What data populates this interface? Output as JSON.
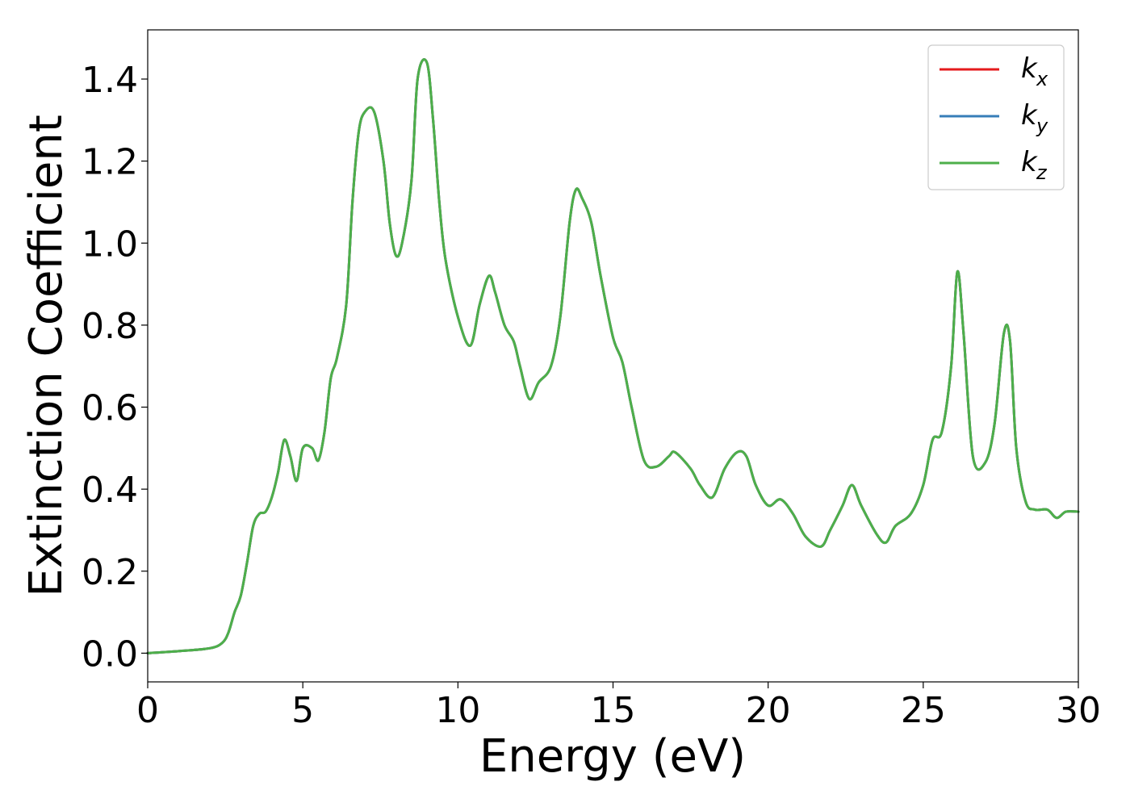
{
  "chart_data": {
    "type": "line",
    "title": "",
    "xlabel": "Energy (eV)",
    "ylabel": "Extinction Coefficient",
    "xlim": [
      0,
      30
    ],
    "ylim": [
      -0.07,
      1.52
    ],
    "xticks": [
      0,
      5,
      10,
      15,
      20,
      25,
      30
    ],
    "xtick_labels": [
      "0",
      "5",
      "10",
      "15",
      "20",
      "25",
      "30"
    ],
    "yticks": [
      0.0,
      0.2,
      0.4,
      0.6,
      0.8,
      1.0,
      1.2,
      1.4
    ],
    "ytick_labels": [
      "0.0",
      "0.2",
      "0.4",
      "0.6",
      "0.8",
      "1.0",
      "1.2",
      "1.4"
    ],
    "grid": false,
    "legend_position": "top-right",
    "x": [
      0,
      1,
      2,
      2.4,
      2.6,
      2.8,
      3.0,
      3.2,
      3.4,
      3.6,
      3.8,
      4.0,
      4.2,
      4.4,
      4.6,
      4.8,
      5.0,
      5.3,
      5.5,
      5.7,
      5.9,
      6.1,
      6.4,
      6.6,
      6.8,
      7.0,
      7.3,
      7.6,
      7.8,
      8.0,
      8.2,
      8.5,
      8.7,
      9.0,
      9.2,
      9.4,
      9.6,
      10.0,
      10.4,
      10.7,
      11.0,
      11.2,
      11.5,
      11.8,
      12.0,
      12.3,
      12.6,
      13.0,
      13.3,
      13.6,
      13.8,
      14.0,
      14.3,
      14.6,
      15.0,
      15.3,
      15.6,
      16.0,
      16.4,
      16.8,
      17.0,
      17.5,
      17.8,
      18.2,
      18.6,
      19.0,
      19.3,
      19.6,
      20.0,
      20.4,
      20.8,
      21.2,
      21.7,
      22.0,
      22.4,
      22.7,
      23.0,
      23.5,
      23.8,
      24.1,
      24.6,
      25.0,
      25.3,
      25.6,
      25.9,
      26.1,
      26.3,
      26.6,
      27.0,
      27.3,
      27.6,
      27.8,
      28.0,
      28.3,
      28.6,
      29.0,
      29.3,
      29.6,
      30.0
    ],
    "series": [
      {
        "name": "k_x",
        "legend_base": "k",
        "legend_sub": "x",
        "color": "#e41a1c",
        "values": [
          0.0,
          0.005,
          0.012,
          0.025,
          0.05,
          0.1,
          0.14,
          0.22,
          0.31,
          0.34,
          0.345,
          0.38,
          0.44,
          0.52,
          0.48,
          0.42,
          0.5,
          0.5,
          0.47,
          0.54,
          0.67,
          0.72,
          0.85,
          1.1,
          1.27,
          1.32,
          1.32,
          1.2,
          1.05,
          0.97,
          1.0,
          1.15,
          1.4,
          1.44,
          1.3,
          1.1,
          0.96,
          0.82,
          0.75,
          0.85,
          0.92,
          0.88,
          0.8,
          0.76,
          0.7,
          0.62,
          0.66,
          0.7,
          0.82,
          1.05,
          1.13,
          1.11,
          1.05,
          0.92,
          0.77,
          0.71,
          0.6,
          0.47,
          0.455,
          0.48,
          0.49,
          0.45,
          0.41,
          0.38,
          0.45,
          0.49,
          0.48,
          0.41,
          0.36,
          0.375,
          0.34,
          0.285,
          0.26,
          0.3,
          0.36,
          0.41,
          0.36,
          0.29,
          0.27,
          0.31,
          0.34,
          0.41,
          0.52,
          0.54,
          0.7,
          0.93,
          0.78,
          0.48,
          0.465,
          0.56,
          0.78,
          0.76,
          0.5,
          0.37,
          0.35,
          0.35,
          0.33,
          0.345,
          0.345
        ]
      },
      {
        "name": "k_y",
        "legend_base": "k",
        "legend_sub": "y",
        "color": "#377eb8",
        "values": [
          0.0,
          0.005,
          0.012,
          0.025,
          0.05,
          0.1,
          0.14,
          0.22,
          0.31,
          0.34,
          0.345,
          0.38,
          0.44,
          0.52,
          0.48,
          0.42,
          0.5,
          0.5,
          0.47,
          0.54,
          0.67,
          0.72,
          0.85,
          1.1,
          1.27,
          1.32,
          1.32,
          1.2,
          1.05,
          0.97,
          1.0,
          1.15,
          1.4,
          1.44,
          1.3,
          1.1,
          0.96,
          0.82,
          0.75,
          0.85,
          0.92,
          0.88,
          0.8,
          0.76,
          0.7,
          0.62,
          0.66,
          0.7,
          0.82,
          1.05,
          1.13,
          1.11,
          1.05,
          0.92,
          0.77,
          0.71,
          0.6,
          0.47,
          0.455,
          0.48,
          0.49,
          0.45,
          0.41,
          0.38,
          0.45,
          0.49,
          0.48,
          0.41,
          0.36,
          0.375,
          0.34,
          0.285,
          0.26,
          0.3,
          0.36,
          0.41,
          0.36,
          0.29,
          0.27,
          0.31,
          0.34,
          0.41,
          0.52,
          0.54,
          0.7,
          0.93,
          0.78,
          0.48,
          0.465,
          0.56,
          0.78,
          0.76,
          0.5,
          0.37,
          0.35,
          0.35,
          0.33,
          0.345,
          0.345
        ]
      },
      {
        "name": "k_z",
        "legend_base": "k",
        "legend_sub": "z",
        "color": "#4daf4a",
        "values": [
          0.0,
          0.005,
          0.012,
          0.025,
          0.05,
          0.1,
          0.14,
          0.22,
          0.31,
          0.34,
          0.345,
          0.38,
          0.44,
          0.52,
          0.48,
          0.42,
          0.5,
          0.5,
          0.47,
          0.54,
          0.67,
          0.72,
          0.85,
          1.1,
          1.27,
          1.32,
          1.32,
          1.2,
          1.05,
          0.97,
          1.0,
          1.15,
          1.4,
          1.44,
          1.3,
          1.1,
          0.96,
          0.82,
          0.75,
          0.85,
          0.92,
          0.88,
          0.8,
          0.76,
          0.7,
          0.62,
          0.66,
          0.7,
          0.82,
          1.05,
          1.13,
          1.11,
          1.05,
          0.92,
          0.77,
          0.71,
          0.6,
          0.47,
          0.455,
          0.48,
          0.49,
          0.45,
          0.41,
          0.38,
          0.45,
          0.49,
          0.48,
          0.41,
          0.36,
          0.375,
          0.34,
          0.285,
          0.26,
          0.3,
          0.36,
          0.41,
          0.36,
          0.29,
          0.27,
          0.31,
          0.34,
          0.41,
          0.52,
          0.54,
          0.7,
          0.93,
          0.78,
          0.48,
          0.465,
          0.56,
          0.78,
          0.76,
          0.5,
          0.37,
          0.35,
          0.35,
          0.33,
          0.345,
          0.345
        ]
      }
    ]
  }
}
